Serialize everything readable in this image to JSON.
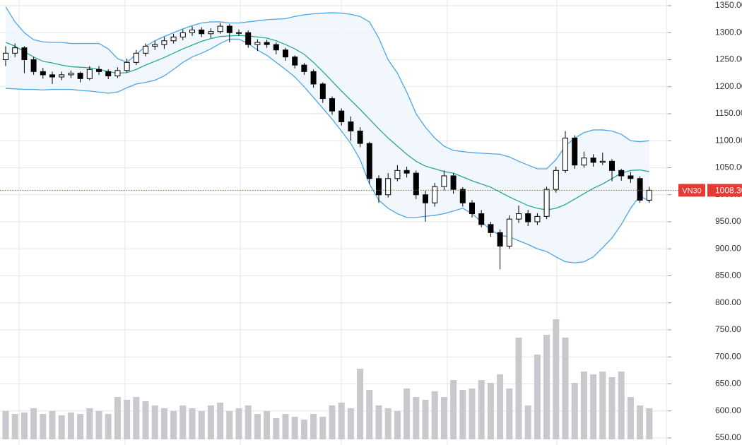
{
  "chart_data": {
    "type": "candlestick",
    "ylim": [
      550,
      1350
    ],
    "yticks": [
      {
        "value": 1350,
        "label": "1350.00"
      },
      {
        "value": 1300,
        "label": "1300.00"
      },
      {
        "value": 1250,
        "label": "1250.00"
      },
      {
        "value": 1200,
        "label": "1200.00"
      },
      {
        "value": 1150,
        "label": "1150.00"
      },
      {
        "value": 1100,
        "label": "1100.00"
      },
      {
        "value": 1050,
        "label": "1050.00"
      },
      {
        "value": 1000,
        "label": "1000.00"
      },
      {
        "value": 950,
        "label": "950.00"
      },
      {
        "value": 900,
        "label": "900.00"
      },
      {
        "value": 850,
        "label": "850.00"
      },
      {
        "value": 800,
        "label": "800.00"
      },
      {
        "value": 750,
        "label": "750.00"
      },
      {
        "value": 700,
        "label": "700.00"
      },
      {
        "value": 650,
        "label": "650.00"
      },
      {
        "value": 600,
        "label": "600.00"
      },
      {
        "value": 550,
        "label": "550.00"
      }
    ],
    "grid": true,
    "colors": {
      "up": "#ffffff",
      "down": "#000000",
      "upper": "#4ea6e6",
      "middle": "#26a69a",
      "lower": "#4ea6e6",
      "band_fill": "#eef6fd",
      "volume": "#c9c9cd",
      "last": "#e53935"
    },
    "last": {
      "name": "VN30",
      "value": 1008.3,
      "label": "1008.30"
    },
    "ohlc": [
      [
        1250,
        1275,
        1238,
        1262
      ],
      [
        1262,
        1280,
        1255,
        1272
      ],
      [
        1272,
        1275,
        1225,
        1250
      ],
      [
        1250,
        1255,
        1222,
        1228
      ],
      [
        1228,
        1235,
        1215,
        1222
      ],
      [
        1222,
        1228,
        1205,
        1218
      ],
      [
        1218,
        1228,
        1212,
        1222
      ],
      [
        1222,
        1230,
        1216,
        1225
      ],
      [
        1225,
        1228,
        1208,
        1215
      ],
      [
        1215,
        1238,
        1212,
        1232
      ],
      [
        1232,
        1238,
        1222,
        1228
      ],
      [
        1228,
        1232,
        1214,
        1220
      ],
      [
        1220,
        1236,
        1216,
        1230
      ],
      [
        1230,
        1252,
        1226,
        1245
      ],
      [
        1245,
        1268,
        1240,
        1262
      ],
      [
        1262,
        1280,
        1256,
        1275
      ],
      [
        1275,
        1285,
        1268,
        1278
      ],
      [
        1278,
        1292,
        1270,
        1285
      ],
      [
        1285,
        1298,
        1280,
        1292
      ],
      [
        1292,
        1306,
        1286,
        1300
      ],
      [
        1300,
        1312,
        1294,
        1305
      ],
      [
        1305,
        1310,
        1292,
        1298
      ],
      [
        1298,
        1308,
        1290,
        1302
      ],
      [
        1302,
        1318,
        1298,
        1312
      ],
      [
        1312,
        1316,
        1282,
        1300
      ],
      [
        1300,
        1306,
        1294,
        1300
      ],
      [
        1300,
        1304,
        1272,
        1278
      ],
      [
        1278,
        1288,
        1266,
        1282
      ],
      [
        1282,
        1287,
        1272,
        1278
      ],
      [
        1278,
        1282,
        1260,
        1268
      ],
      [
        1268,
        1272,
        1248,
        1255
      ],
      [
        1255,
        1258,
        1234,
        1240
      ],
      [
        1240,
        1244,
        1222,
        1228
      ],
      [
        1228,
        1232,
        1198,
        1205
      ],
      [
        1205,
        1208,
        1170,
        1178
      ],
      [
        1178,
        1182,
        1148,
        1155
      ],
      [
        1155,
        1160,
        1128,
        1135
      ],
      [
        1135,
        1145,
        1100,
        1118
      ],
      [
        1118,
        1125,
        1088,
        1095
      ],
      [
        1095,
        1098,
        1020,
        1030
      ],
      [
        1030,
        1036,
        985,
        1000
      ],
      [
        1000,
        1040,
        995,
        1030
      ],
      [
        1030,
        1055,
        1025,
        1045
      ],
      [
        1045,
        1052,
        1032,
        1040
      ],
      [
        1040,
        1045,
        992,
        1000
      ],
      [
        1000,
        1008,
        950,
        985
      ],
      [
        985,
        1022,
        978,
        1015
      ],
      [
        1015,
        1045,
        1008,
        1035
      ],
      [
        1035,
        1040,
        1002,
        1010
      ],
      [
        1010,
        1014,
        978,
        985
      ],
      [
        985,
        990,
        958,
        965
      ],
      [
        965,
        972,
        940,
        945
      ],
      [
        945,
        950,
        922,
        930
      ],
      [
        930,
        936,
        862,
        905
      ],
      [
        905,
        962,
        900,
        955
      ],
      [
        955,
        980,
        948,
        965
      ],
      [
        965,
        972,
        942,
        950
      ],
      [
        950,
        966,
        944,
        960
      ],
      [
        960,
        1015,
        955,
        1010
      ],
      [
        1010,
        1052,
        1004,
        1045
      ],
      [
        1045,
        1118,
        1040,
        1105
      ],
      [
        1105,
        1110,
        1048,
        1055
      ],
      [
        1055,
        1080,
        1050,
        1068
      ],
      [
        1068,
        1075,
        1052,
        1060
      ],
      [
        1060,
        1078,
        1055,
        1062
      ],
      [
        1062,
        1066,
        1025,
        1045
      ],
      [
        1045,
        1048,
        1026,
        1035
      ],
      [
        1035,
        1042,
        1022,
        1030
      ],
      [
        1030,
        1034,
        985,
        990
      ],
      [
        990,
        1015,
        985,
        1008.3
      ]
    ],
    "upper": [
      1348,
      1320,
      1300,
      1287,
      1283,
      1282,
      1282,
      1280,
      1280,
      1280,
      1280,
      1270,
      1252,
      1245,
      1260,
      1275,
      1285,
      1293,
      1300,
      1307,
      1313,
      1318,
      1320,
      1320,
      1318,
      1318,
      1320,
      1322,
      1324,
      1325,
      1326,
      1330,
      1333,
      1335,
      1336,
      1337,
      1336,
      1334,
      1330,
      1320,
      1290,
      1250,
      1225,
      1190,
      1150,
      1125,
      1105,
      1090,
      1082,
      1080,
      1078,
      1077,
      1076,
      1075,
      1070,
      1062,
      1055,
      1048,
      1048,
      1065,
      1090,
      1105,
      1115,
      1120,
      1120,
      1118,
      1112,
      1100,
      1098,
      1100
    ],
    "middle": [
      1282,
      1275,
      1265,
      1255,
      1247,
      1244,
      1240,
      1237,
      1236,
      1235,
      1232,
      1228,
      1225,
      1226,
      1232,
      1240,
      1247,
      1254,
      1262,
      1270,
      1277,
      1284,
      1289,
      1293,
      1294,
      1295,
      1294,
      1292,
      1290,
      1285,
      1278,
      1270,
      1260,
      1245,
      1228,
      1210,
      1192,
      1175,
      1158,
      1140,
      1122,
      1105,
      1090,
      1075,
      1062,
      1053,
      1048,
      1043,
      1040,
      1033,
      1026,
      1020,
      1014,
      1005,
      996,
      988,
      980,
      975,
      972,
      975,
      982,
      992,
      1002,
      1012,
      1020,
      1030,
      1040,
      1045,
      1046,
      1043
    ],
    "lower": [
      1197,
      1196,
      1195,
      1195,
      1194,
      1195,
      1195,
      1195,
      1193,
      1192,
      1190,
      1188,
      1190,
      1198,
      1205,
      1208,
      1212,
      1220,
      1232,
      1245,
      1255,
      1262,
      1270,
      1280,
      1288,
      1288,
      1280,
      1268,
      1258,
      1245,
      1232,
      1218,
      1200,
      1180,
      1160,
      1140,
      1118,
      1095,
      1065,
      1020,
      990,
      975,
      965,
      958,
      958,
      960,
      962,
      965,
      970,
      975,
      965,
      950,
      935,
      925,
      922,
      915,
      908,
      900,
      895,
      885,
      876,
      874,
      876,
      885,
      902,
      920,
      945,
      975,
      998,
      988
    ],
    "volume": [
      20,
      18,
      19,
      22,
      18,
      20,
      17,
      19,
      18,
      22,
      20,
      18,
      30,
      28,
      30,
      27,
      24,
      22,
      20,
      24,
      22,
      20,
      24,
      26,
      20,
      22,
      24,
      18,
      20,
      15,
      18,
      16,
      14,
      18,
      16,
      24,
      26,
      22,
      50,
      35,
      24,
      22,
      20,
      36,
      30,
      28,
      34,
      30,
      42,
      35,
      36,
      42,
      40,
      46,
      36,
      72,
      24,
      60,
      74,
      85,
      72,
      40,
      48,
      46,
      48,
      44,
      48,
      30,
      24,
      22
    ]
  }
}
